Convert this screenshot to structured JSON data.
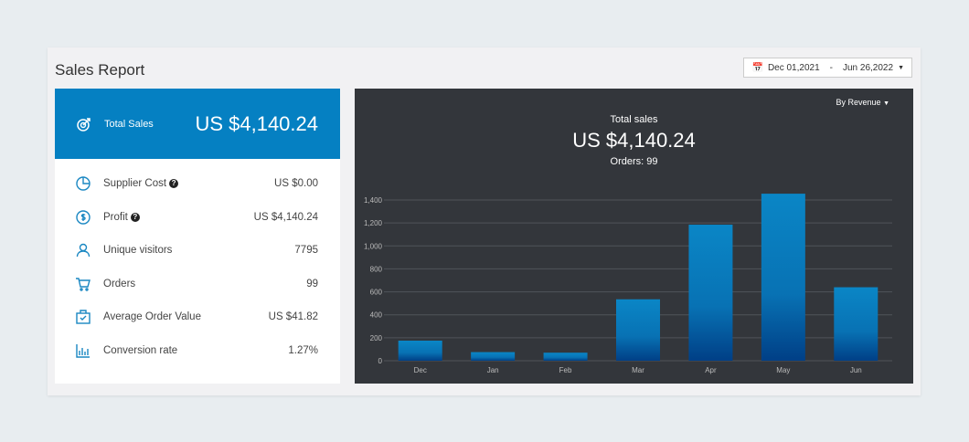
{
  "title": "Sales Report",
  "date_range": {
    "start": "Dec 01,2021",
    "sep": "-",
    "end": "Jun 26,2022"
  },
  "total": {
    "label": "Total Sales",
    "value": "US $4,140.24"
  },
  "metrics": [
    {
      "label": "Supplier Cost",
      "value": "US $0.00",
      "help": "?",
      "icon": "pie-icon"
    },
    {
      "label": "Profit",
      "value": "US $4,140.24",
      "help": "?",
      "icon": "dollar-icon"
    },
    {
      "label": "Unique visitors",
      "value": "7795",
      "icon": "user-icon"
    },
    {
      "label": "Orders",
      "value": "99",
      "icon": "cart-icon"
    },
    {
      "label": "Average Order Value",
      "value": "US $41.82",
      "icon": "bag-icon"
    },
    {
      "label": "Conversion rate",
      "value": "1.27%",
      "icon": "bar-chart-icon"
    }
  ],
  "chart_panel": {
    "selector": "By Revenue",
    "title": "Total sales",
    "value": "US $4,140.24",
    "orders": "Orders: 99"
  },
  "chart_data": {
    "type": "bar",
    "categories": [
      "Dec",
      "Jan",
      "Feb",
      "Mar",
      "Apr",
      "May",
      "Jun"
    ],
    "values": [
      175,
      75,
      70,
      535,
      1185,
      1455,
      640
    ],
    "ylim": [
      0,
      1400
    ],
    "yticks": [
      "0",
      "200",
      "400",
      "600",
      "800",
      "1,000",
      "1,200",
      "1,400"
    ],
    "grid": true,
    "colors": {
      "top": "#0a86c6",
      "bottom": "#003f86"
    }
  }
}
